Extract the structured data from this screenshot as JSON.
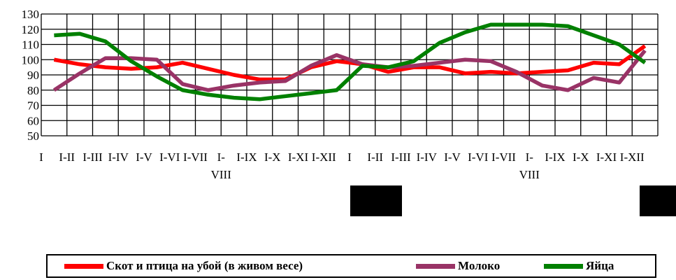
{
  "chart_data": {
    "type": "line",
    "categories": [
      "I",
      "I-II",
      "I-III",
      "I-IV",
      "I-V",
      "I-VI",
      "I-VII",
      "I-VIII",
      "I-IX",
      "I-X",
      "I-XI",
      "I-XII",
      "I",
      "I-II",
      "I-III",
      "I-IV",
      "I-V",
      "I-VI",
      "I-VII",
      "I-VIII",
      "I-IX",
      "I-X",
      "I-XI",
      "I-XII"
    ],
    "x_tick_labels": [
      [
        "I"
      ],
      [
        "I-II"
      ],
      [
        "I-III"
      ],
      [
        "I-IV"
      ],
      [
        "I-V"
      ],
      [
        "I-VI"
      ],
      [
        "I-VII"
      ],
      [
        "I-",
        "VIII"
      ],
      [
        "I-IX"
      ],
      [
        "I-X"
      ],
      [
        "I-XI"
      ],
      [
        "I-XII"
      ],
      [
        "I"
      ],
      [
        "I-II"
      ],
      [
        "I-III"
      ],
      [
        "I-IV"
      ],
      [
        "I-V"
      ],
      [
        "I-VI"
      ],
      [
        "I-VII"
      ],
      [
        "I-",
        "VIII"
      ],
      [
        "I-IX"
      ],
      [
        "I-X"
      ],
      [
        "I-XI"
      ],
      [
        "I-XII"
      ]
    ],
    "series": [
      {
        "name": "Скот и птица на убой (в живом весе)",
        "color": "#ff0000",
        "values": [
          100,
          97,
          95,
          94,
          95,
          98,
          94,
          90,
          87,
          87,
          95,
          99,
          97,
          92,
          95,
          95,
          91,
          92,
          91,
          92,
          93,
          98,
          97,
          109
        ]
      },
      {
        "name": "Молоко",
        "color": "#993366",
        "values": [
          80,
          91,
          101,
          101,
          100,
          84,
          80,
          83,
          85,
          86,
          96,
          103,
          97,
          95,
          96,
          98,
          100,
          99,
          92,
          83,
          80,
          88,
          85,
          106
        ]
      },
      {
        "name": "Яйца",
        "color": "#008000",
        "values": [
          116,
          117,
          112,
          99,
          89,
          80,
          77,
          75,
          74,
          76,
          78,
          80,
          96,
          95,
          99,
          111,
          118,
          123,
          123,
          123,
          122,
          116,
          110,
          98
        ]
      }
    ],
    "ylim": [
      50,
      130
    ],
    "y_ticks": [
      50,
      60,
      70,
      80,
      90,
      100,
      110,
      120,
      130
    ],
    "grid": true,
    "legend_position": "bottom"
  }
}
